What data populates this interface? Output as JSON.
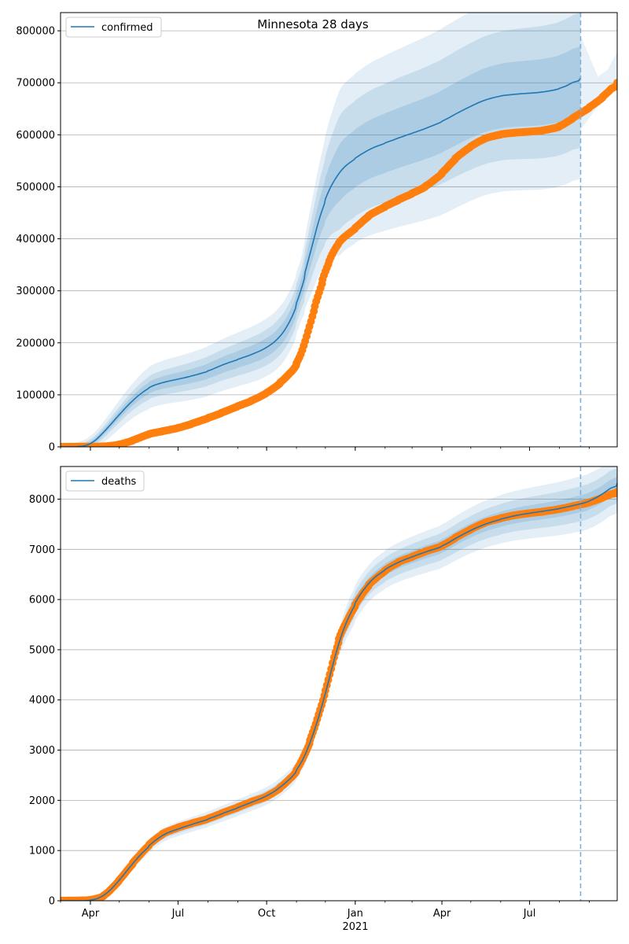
{
  "figure": {
    "title": "Minnesota 28 days",
    "forecast_marker_date": "2021-08-23",
    "marker_color": "#7fb0d8",
    "band_color": "#1f77b4",
    "model_color": "#1f77b4",
    "observed_color": "#ff7f0e"
  },
  "chart_data": [
    {
      "type": "line",
      "legend": [
        "confirmed"
      ],
      "legend_position": "top-left",
      "grid": "horizontal",
      "xlim": [
        "2020-03-01",
        "2021-09-30"
      ],
      "ylim": [
        0,
        835000
      ],
      "x_ticks": [
        {
          "date": "2020-04-01",
          "label": "Apr"
        },
        {
          "date": "2020-07-01",
          "label": "Jul"
        },
        {
          "date": "2020-10-01",
          "label": "Oct"
        },
        {
          "date": "2021-01-01",
          "label": "Jan"
        },
        {
          "date": "2021-04-01",
          "label": "Apr"
        },
        {
          "date": "2021-07-01",
          "label": "Jul"
        }
      ],
      "y_ticks": [
        0,
        100000,
        200000,
        300000,
        400000,
        500000,
        600000,
        700000,
        800000
      ],
      "y_tick_labels": [
        "0",
        "100000",
        "200000",
        "300000",
        "400000",
        "500000",
        "600000",
        "700000",
        "800000"
      ],
      "model": [
        [
          "2020-03-01",
          0
        ],
        [
          "2020-03-20",
          0
        ],
        [
          "2020-04-01",
          3000
        ],
        [
          "2020-04-15",
          28000
        ],
        [
          "2020-05-01",
          62000
        ],
        [
          "2020-05-15",
          90000
        ],
        [
          "2020-06-01",
          115000
        ],
        [
          "2020-06-15",
          124000
        ],
        [
          "2020-07-01",
          130000
        ],
        [
          "2020-07-15",
          136000
        ],
        [
          "2020-08-01",
          145000
        ],
        [
          "2020-08-15",
          157000
        ],
        [
          "2020-09-01",
          168000
        ],
        [
          "2020-09-15",
          177000
        ],
        [
          "2020-10-01",
          190000
        ],
        [
          "2020-10-15",
          210000
        ],
        [
          "2020-10-25",
          238000
        ],
        [
          "2020-11-01",
          270000
        ],
        [
          "2020-11-10",
          330000
        ],
        [
          "2020-11-20",
          410000
        ],
        [
          "2020-12-01",
          480000
        ],
        [
          "2020-12-15",
          530000
        ],
        [
          "2021-01-01",
          555000
        ],
        [
          "2021-01-15",
          572000
        ],
        [
          "2021-02-01",
          584000
        ],
        [
          "2021-02-15",
          594000
        ],
        [
          "2021-03-01",
          603000
        ],
        [
          "2021-03-15",
          612000
        ],
        [
          "2021-04-01",
          625000
        ],
        [
          "2021-04-15",
          640000
        ],
        [
          "2021-05-01",
          655000
        ],
        [
          "2021-05-15",
          667000
        ],
        [
          "2021-06-01",
          675000
        ],
        [
          "2021-06-15",
          678000
        ],
        [
          "2021-07-01",
          680000
        ],
        [
          "2021-07-15",
          682000
        ],
        [
          "2021-08-01",
          688000
        ],
        [
          "2021-08-15",
          700000
        ],
        [
          "2021-08-23",
          710000
        ]
      ],
      "bands": [
        {
          "half_width": [
            [
              0,
              1000
            ],
            [
              90,
              40000
            ],
            [
              250,
              60000
            ],
            [
              290,
              160000
            ],
            [
              400,
              180000
            ],
            [
              540,
              190000
            ]
          ]
        },
        {
          "half_width": [
            [
              0,
              600
            ],
            [
              90,
              22000
            ],
            [
              250,
              38000
            ],
            [
              290,
              110000
            ],
            [
              400,
              120000
            ],
            [
              540,
              130000
            ]
          ]
        },
        {
          "half_width": [
            [
              0,
              300
            ],
            [
              90,
              11000
            ],
            [
              250,
              20000
            ],
            [
              290,
              55000
            ],
            [
              400,
              60000
            ],
            [
              540,
              65000
            ]
          ]
        }
      ],
      "observed": [
        [
          "2020-03-01",
          0
        ],
        [
          "2020-04-15",
          500
        ],
        [
          "2020-05-01",
          4000
        ],
        [
          "2020-05-15",
          12000
        ],
        [
          "2020-06-01",
          25000
        ],
        [
          "2020-06-15",
          30000
        ],
        [
          "2020-07-01",
          36000
        ],
        [
          "2020-07-15",
          44000
        ],
        [
          "2020-08-01",
          55000
        ],
        [
          "2020-08-15",
          65000
        ],
        [
          "2020-09-01",
          78000
        ],
        [
          "2020-09-15",
          88000
        ],
        [
          "2020-10-01",
          103000
        ],
        [
          "2020-10-15",
          122000
        ],
        [
          "2020-11-01",
          155000
        ],
        [
          "2020-11-10",
          200000
        ],
        [
          "2020-11-20",
          270000
        ],
        [
          "2020-11-28",
          320000
        ],
        [
          "2020-12-05",
          360000
        ],
        [
          "2020-12-15",
          395000
        ],
        [
          "2021-01-01",
          420000
        ],
        [
          "2021-01-15",
          445000
        ],
        [
          "2021-02-01",
          462000
        ],
        [
          "2021-02-15",
          475000
        ],
        [
          "2021-03-01",
          487000
        ],
        [
          "2021-03-15",
          500000
        ],
        [
          "2021-04-01",
          525000
        ],
        [
          "2021-04-15",
          555000
        ],
        [
          "2021-05-01",
          578000
        ],
        [
          "2021-05-15",
          593000
        ],
        [
          "2021-06-01",
          601000
        ],
        [
          "2021-06-15",
          604000
        ],
        [
          "2021-07-01",
          606000
        ],
        [
          "2021-07-15",
          608000
        ],
        [
          "2021-08-01",
          615000
        ],
        [
          "2021-08-15",
          632000
        ],
        [
          "2021-09-01",
          652000
        ],
        [
          "2021-09-15",
          672000
        ],
        [
          "2021-09-30",
          700000
        ]
      ],
      "upper_edge_after_marker": [
        [
          "2021-08-23",
          790000
        ],
        [
          "2021-09-10",
          712000
        ],
        [
          "2021-09-20",
          725000
        ],
        [
          "2021-09-30",
          760000
        ]
      ]
    },
    {
      "type": "line",
      "legend": [
        "deaths"
      ],
      "legend_position": "top-left",
      "grid": "horizontal",
      "xlim": [
        "2020-03-01",
        "2021-09-30"
      ],
      "ylim": [
        0,
        8650
      ],
      "x_ticks": [
        {
          "date": "2020-04-01",
          "label": "Apr"
        },
        {
          "date": "2020-07-01",
          "label": "Jul"
        },
        {
          "date": "2020-10-01",
          "label": "Oct"
        },
        {
          "date": "2021-01-01",
          "label": "Jan"
        },
        {
          "date": "2021-04-01",
          "label": "Apr"
        },
        {
          "date": "2021-07-01",
          "label": "Jul"
        }
      ],
      "x_year_label": {
        "date": "2021-01-01",
        "label": "2021"
      },
      "y_ticks": [
        0,
        1000,
        2000,
        3000,
        4000,
        5000,
        6000,
        7000,
        8000
      ],
      "y_tick_labels": [
        "0",
        "1000",
        "2000",
        "3000",
        "4000",
        "5000",
        "6000",
        "7000",
        "8000"
      ],
      "model": [
        [
          "2020-03-01",
          0
        ],
        [
          "2020-04-01",
          0
        ],
        [
          "2020-04-15",
          80
        ],
        [
          "2020-05-01",
          400
        ],
        [
          "2020-05-15",
          750
        ],
        [
          "2020-06-01",
          1100
        ],
        [
          "2020-06-15",
          1320
        ],
        [
          "2020-07-01",
          1430
        ],
        [
          "2020-07-15",
          1520
        ],
        [
          "2020-08-01",
          1620
        ],
        [
          "2020-08-15",
          1730
        ],
        [
          "2020-09-01",
          1850
        ],
        [
          "2020-09-15",
          1960
        ],
        [
          "2020-10-01",
          2080
        ],
        [
          "2020-10-15",
          2250
        ],
        [
          "2020-11-01",
          2550
        ],
        [
          "2020-11-15",
          3100
        ],
        [
          "2020-12-01",
          4100
        ],
        [
          "2020-12-15",
          5200
        ],
        [
          "2021-01-01",
          5950
        ],
        [
          "2021-01-15",
          6350
        ],
        [
          "2021-02-01",
          6600
        ],
        [
          "2021-02-15",
          6750
        ],
        [
          "2021-03-01",
          6850
        ],
        [
          "2021-03-15",
          6950
        ],
        [
          "2021-04-01",
          7050
        ],
        [
          "2021-04-15",
          7220
        ],
        [
          "2021-05-01",
          7380
        ],
        [
          "2021-05-15",
          7500
        ],
        [
          "2021-06-01",
          7600
        ],
        [
          "2021-06-15",
          7670
        ],
        [
          "2021-07-01",
          7720
        ],
        [
          "2021-07-15",
          7760
        ],
        [
          "2021-08-01",
          7810
        ],
        [
          "2021-08-15",
          7870
        ],
        [
          "2021-09-01",
          7950
        ],
        [
          "2021-09-15",
          8100
        ],
        [
          "2021-09-30",
          8320
        ]
      ],
      "bands": [
        {
          "half_width": [
            [
              0,
              0
            ],
            [
              60,
              120
            ],
            [
              280,
              200
            ],
            [
              300,
              350
            ],
            [
              540,
              550
            ]
          ]
        },
        {
          "half_width": [
            [
              0,
              0
            ],
            [
              60,
              70
            ],
            [
              280,
              120
            ],
            [
              300,
              220
            ],
            [
              540,
              350
            ]
          ]
        },
        {
          "half_width": [
            [
              0,
              0
            ],
            [
              60,
              35
            ],
            [
              280,
              60
            ],
            [
              300,
              110
            ],
            [
              540,
              170
            ]
          ]
        }
      ],
      "observed": [
        [
          "2020-03-01",
          0
        ],
        [
          "2020-04-01",
          10
        ],
        [
          "2020-04-15",
          80
        ],
        [
          "2020-05-01",
          400
        ],
        [
          "2020-05-15",
          750
        ],
        [
          "2020-06-01",
          1120
        ],
        [
          "2020-06-15",
          1340
        ],
        [
          "2020-07-01",
          1460
        ],
        [
          "2020-07-15",
          1540
        ],
        [
          "2020-08-01",
          1630
        ],
        [
          "2020-08-15",
          1740
        ],
        [
          "2020-09-01",
          1860
        ],
        [
          "2020-09-15",
          1970
        ],
        [
          "2020-10-01",
          2070
        ],
        [
          "2020-10-15",
          2240
        ],
        [
          "2020-11-01",
          2560
        ],
        [
          "2020-11-15",
          3150
        ],
        [
          "2020-12-01",
          4150
        ],
        [
          "2020-12-15",
          5250
        ],
        [
          "2021-01-01",
          5900
        ],
        [
          "2021-01-15",
          6300
        ],
        [
          "2021-02-01",
          6580
        ],
        [
          "2021-02-15",
          6750
        ],
        [
          "2021-03-01",
          6850
        ],
        [
          "2021-03-15",
          6960
        ],
        [
          "2021-04-01",
          7060
        ],
        [
          "2021-04-15",
          7230
        ],
        [
          "2021-05-01",
          7400
        ],
        [
          "2021-05-15",
          7530
        ],
        [
          "2021-06-01",
          7620
        ],
        [
          "2021-06-15",
          7680
        ],
        [
          "2021-07-01",
          7720
        ],
        [
          "2021-07-15",
          7750
        ],
        [
          "2021-08-01",
          7800
        ],
        [
          "2021-08-15",
          7860
        ],
        [
          "2021-09-01",
          7930
        ],
        [
          "2021-09-15",
          8030
        ],
        [
          "2021-09-30",
          8150
        ]
      ]
    }
  ]
}
